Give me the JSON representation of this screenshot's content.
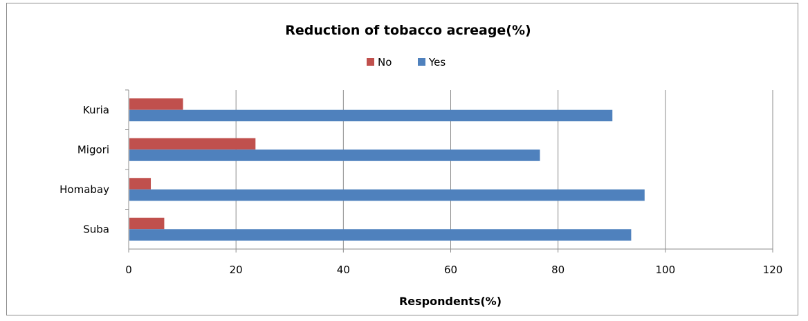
{
  "chart_data": {
    "type": "bar",
    "orientation": "horizontal",
    "title": "Reduction of  tobacco acreage(%)",
    "xlabel": "Respondents(%)",
    "ylabel": "",
    "categories": [
      "Kuria",
      "Migori",
      "Homabay",
      "Suba"
    ],
    "series": [
      {
        "name": "No",
        "color": "#c0504d",
        "values": [
          10,
          23.5,
          4,
          6.5
        ]
      },
      {
        "name": "Yes",
        "color": "#4f81bd",
        "values": [
          90,
          76.5,
          96,
          93.5
        ]
      }
    ],
    "xlim": [
      0,
      120
    ],
    "ticks": [
      0,
      20,
      40,
      60,
      80,
      100,
      120
    ],
    "grid": true,
    "legend_position": "top"
  }
}
